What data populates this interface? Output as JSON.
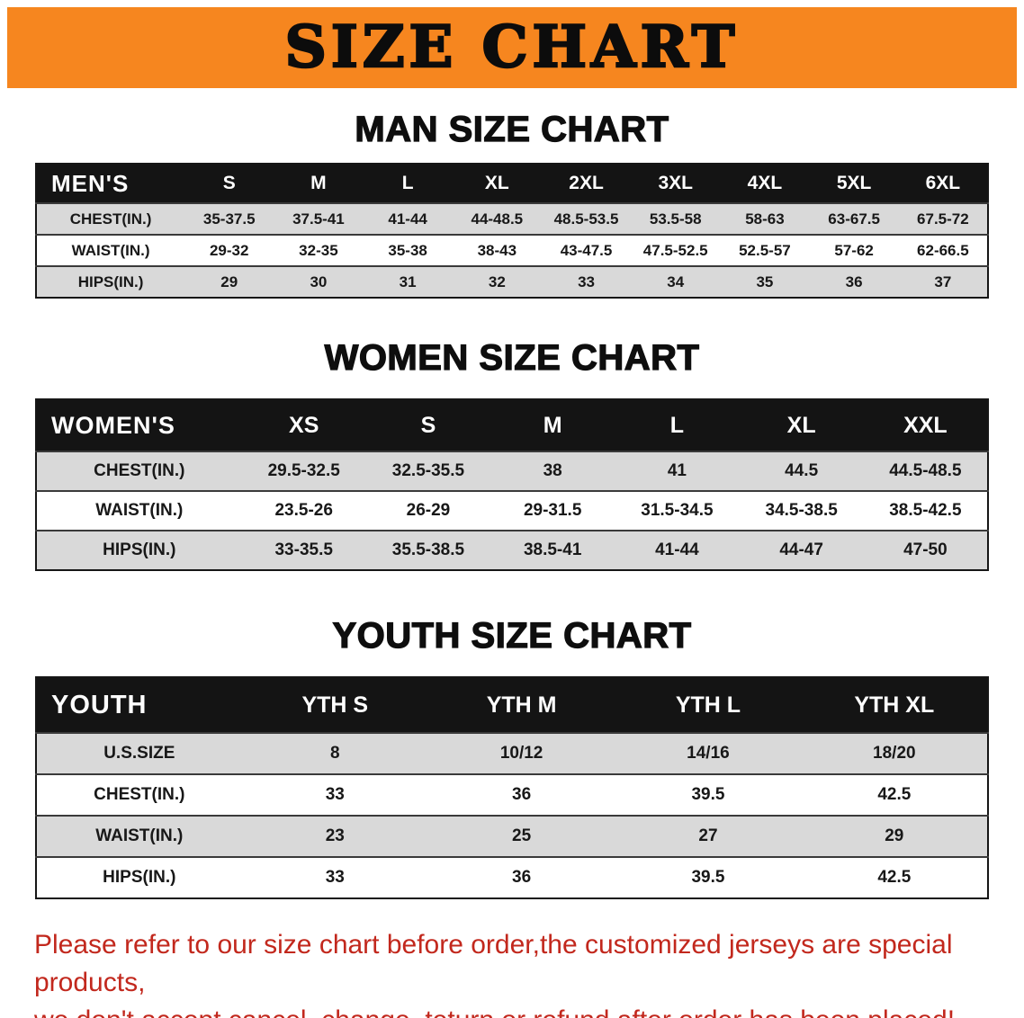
{
  "banner": {
    "title": "SIZE CHART",
    "background": "#f6861f",
    "text_color": "#0c0c0c"
  },
  "sections": [
    {
      "id": "men",
      "heading": "MAN SIZE CHART",
      "table": {
        "header": [
          "MEN'S",
          "S",
          "M",
          "L",
          "XL",
          "2XL",
          "3XL",
          "4XL",
          "5XL",
          "6XL"
        ],
        "rows": [
          [
            "CHEST(IN.)",
            "35-37.5",
            "37.5-41",
            "41-44",
            "44-48.5",
            "48.5-53.5",
            "53.5-58",
            "58-63",
            "63-67.5",
            "67.5-72"
          ],
          [
            "WAIST(IN.)",
            "29-32",
            "32-35",
            "35-38",
            "38-43",
            "43-47.5",
            "47.5-52.5",
            "52.5-57",
            "57-62",
            "62-66.5"
          ],
          [
            "HIPS(IN.)",
            "29",
            "30",
            "31",
            "32",
            "33",
            "34",
            "35",
            "36",
            "37"
          ]
        ]
      }
    },
    {
      "id": "women",
      "heading": "WOMEN SIZE CHART",
      "table": {
        "header": [
          "WOMEN'S",
          "XS",
          "S",
          "M",
          "L",
          "XL",
          "XXL"
        ],
        "rows": [
          [
            "CHEST(IN.)",
            "29.5-32.5",
            "32.5-35.5",
            "38",
            "41",
            "44.5",
            "44.5-48.5"
          ],
          [
            "WAIST(IN.)",
            "23.5-26",
            "26-29",
            "29-31.5",
            "31.5-34.5",
            "34.5-38.5",
            "38.5-42.5"
          ],
          [
            "HIPS(IN.)",
            "33-35.5",
            "35.5-38.5",
            "38.5-41",
            "41-44",
            "44-47",
            "47-50"
          ]
        ]
      }
    },
    {
      "id": "youth",
      "heading": "YOUTH SIZE CHART",
      "table": {
        "header": [
          "YOUTH",
          "YTH S",
          "YTH M",
          "YTH L",
          "YTH XL"
        ],
        "rows": [
          [
            "U.S.SIZE",
            "8",
            "10/12",
            "14/16",
            "18/20"
          ],
          [
            "CHEST(IN.)",
            "33",
            "36",
            "39.5",
            "42.5"
          ],
          [
            "WAIST(IN.)",
            "23",
            "25",
            "27",
            "29"
          ],
          [
            "HIPS(IN.)",
            "33",
            "36",
            "39.5",
            "42.5"
          ]
        ]
      }
    }
  ],
  "disclaimer": {
    "color": "#c2281d",
    "line1": "Please refer to our size chart before order,the customized jerseys are special products,",
    "line2": "we don't accept cancel, change, teturn or refund after order has been placed!"
  }
}
